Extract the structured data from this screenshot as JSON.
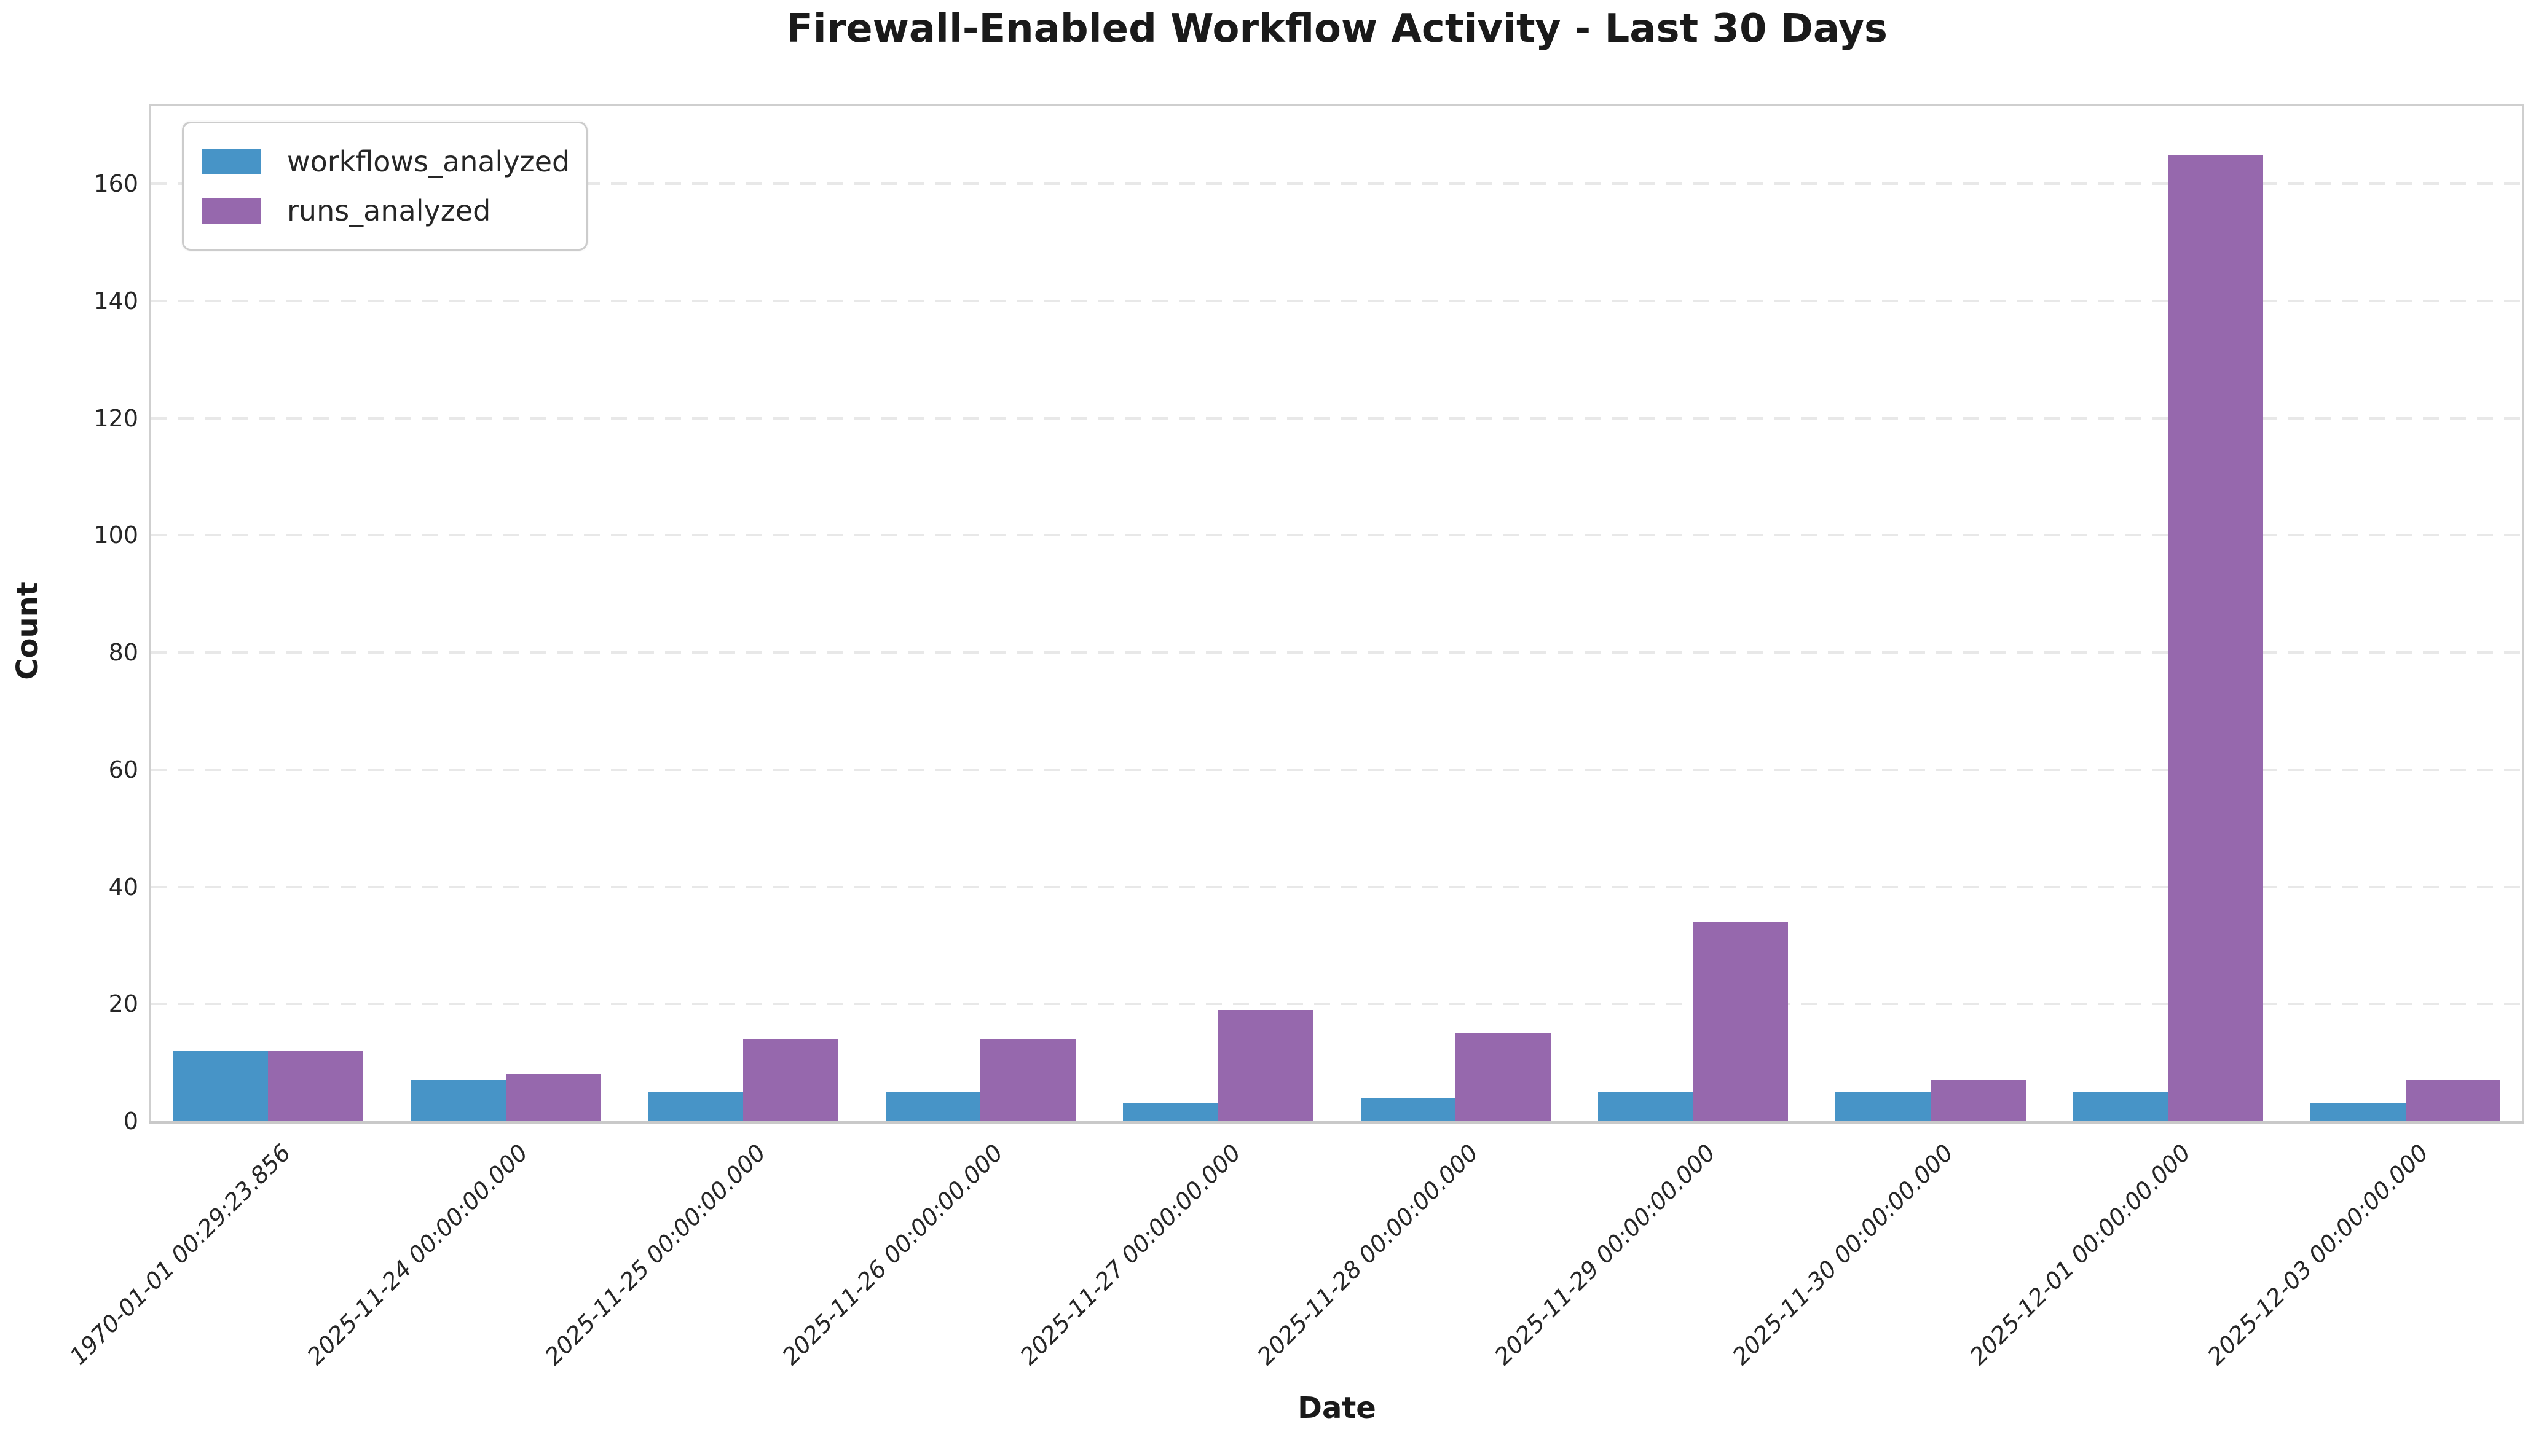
{
  "chart_data": {
    "type": "bar",
    "title": "Firewall-Enabled Workflow Activity - Last 30 Days",
    "xlabel": "Date",
    "ylabel": "Count",
    "categories": [
      "1970-01-01 00:29:23.856",
      "2025-11-24 00:00:00.000",
      "2025-11-25 00:00:00.000",
      "2025-11-26 00:00:00.000",
      "2025-11-27 00:00:00.000",
      "2025-11-28 00:00:00.000",
      "2025-11-29 00:00:00.000",
      "2025-11-30 00:00:00.000",
      "2025-12-01 00:00:00.000",
      "2025-12-03 00:00:00.000"
    ],
    "series": [
      {
        "name": "workflows_analyzed",
        "color": "#4794c7",
        "values": [
          12,
          7,
          5,
          5,
          3,
          4,
          5,
          5,
          5,
          3
        ]
      },
      {
        "name": "runs_analyzed",
        "color": "#9668ad",
        "values": [
          12,
          8,
          14,
          14,
          19,
          15,
          34,
          7,
          165,
          7
        ]
      }
    ],
    "yticks": [
      0,
      20,
      40,
      60,
      80,
      100,
      120,
      140,
      160
    ],
    "ylim": [
      0,
      173.25
    ],
    "grid": "horizontal-dashed",
    "legend_position": "upper-left"
  }
}
